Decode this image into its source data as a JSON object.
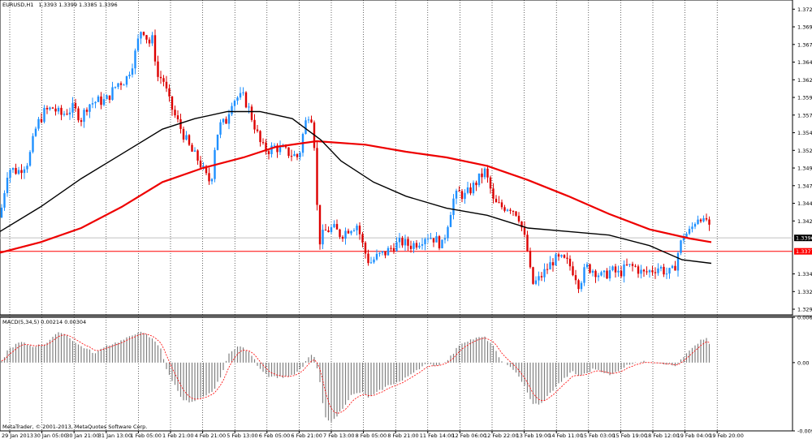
{
  "header": {
    "symbol": "EURUSD,H1",
    "ohlc": "1.3393 1.3399 1.3385 1.3396"
  },
  "footer": {
    "copyright": "MetaTrader, © 2001-2013, MetaQuotes Software Corp."
  },
  "colors": {
    "background": "#ffffff",
    "bull": "#1e90ff",
    "bear": "#dd0000",
    "ma_red": "#ee0000",
    "ma_black": "#000000",
    "grid": "#000000",
    "level_line": "#ff0000",
    "bid_line": "#c0c0c0",
    "macd_hist": "#808080",
    "macd_signal": "#ff0000"
  },
  "chart_data": [
    {
      "type": "candlestick",
      "title": "EURUSD,H1",
      "ylim": [
        1.3287,
        1.3733
      ],
      "y_ticks": [
        "1.3720",
        "1.3695",
        "1.3670",
        "1.3645",
        "1.3620",
        "1.3595",
        "1.3570",
        "1.3545",
        "1.3520",
        "1.3495",
        "1.3470",
        "1.3445",
        "1.3420",
        "1.3396",
        "1.3377",
        "1.3345",
        "1.3320",
        "1.3295"
      ],
      "x_labels": [
        "29 Jan 2013",
        "30 Jan 05:00",
        "30 Jan 21:00",
        "31 Jan 13:00",
        "1 Feb 05:00",
        "1 Feb 21:00",
        "4 Feb 21:00",
        "5 Feb 13:00",
        "6 Feb 05:00",
        "6 Feb 21:00",
        "7 Feb 13:00",
        "8 Feb 05:00",
        "8 Feb 21:00",
        "11 Feb 14:00",
        "12 Feb 06:00",
        "12 Feb 22:00",
        "13 Feb 19:00",
        "14 Feb 11:00",
        "15 Feb 03:00",
        "15 Feb 19:00",
        "18 Feb 12:00",
        "19 Feb 04:00",
        "19 Feb 20:00"
      ],
      "current_price": "1.3396",
      "level_line": "1.3377",
      "grid": true,
      "price_path": [
        [
          0,
          1.3425
        ],
        [
          10,
          1.3495
        ],
        [
          22,
          1.349
        ],
        [
          35,
          1.3505
        ],
        [
          45,
          1.3555
        ],
        [
          55,
          1.3575
        ],
        [
          65,
          1.358
        ],
        [
          75,
          1.357
        ],
        [
          90,
          1.358
        ],
        [
          100,
          1.3565
        ],
        [
          108,
          1.3585
        ],
        [
          120,
          1.359
        ],
        [
          130,
          1.359
        ],
        [
          145,
          1.3615
        ],
        [
          155,
          1.362
        ],
        [
          165,
          1.365
        ],
        [
          173,
          1.369
        ],
        [
          178,
          1.369
        ],
        [
          183,
          1.367
        ],
        [
          187,
          1.368
        ],
        [
          190,
          1.366
        ],
        [
          195,
          1.362
        ],
        [
          200,
          1.3625
        ],
        [
          208,
          1.359
        ],
        [
          215,
          1.357
        ],
        [
          225,
          1.3545
        ],
        [
          235,
          1.352
        ],
        [
          245,
          1.3505
        ],
        [
          255,
          1.348
        ],
        [
          260,
          1.3475
        ],
        [
          265,
          1.353
        ],
        [
          270,
          1.3555
        ],
        [
          278,
          1.356
        ],
        [
          285,
          1.359
        ],
        [
          292,
          1.3595
        ],
        [
          300,
          1.3595
        ],
        [
          306,
          1.358
        ],
        [
          315,
          1.355
        ],
        [
          322,
          1.3525
        ],
        [
          330,
          1.352
        ],
        [
          338,
          1.3525
        ],
        [
          348,
          1.352
        ],
        [
          358,
          1.3515
        ],
        [
          368,
          1.351
        ],
        [
          375,
          1.3555
        ],
        [
          381,
          1.3575
        ],
        [
          386,
          1.356
        ],
        [
          389,
          1.347
        ],
        [
          393,
          1.339
        ],
        [
          400,
          1.3405
        ],
        [
          410,
          1.341
        ],
        [
          420,
          1.34
        ],
        [
          430,
          1.341
        ],
        [
          440,
          1.3415
        ],
        [
          448,
          1.338
        ],
        [
          455,
          1.336
        ],
        [
          465,
          1.337
        ],
        [
          475,
          1.3375
        ],
        [
          485,
          1.3385
        ],
        [
          495,
          1.339
        ],
        [
          505,
          1.3385
        ],
        [
          515,
          1.339
        ],
        [
          525,
          1.34
        ],
        [
          535,
          1.3395
        ],
        [
          545,
          1.3385
        ],
        [
          552,
          1.342
        ],
        [
          558,
          1.345
        ],
        [
          565,
          1.346
        ],
        [
          572,
          1.3455
        ],
        [
          580,
          1.3465
        ],
        [
          590,
          1.348
        ],
        [
          597,
          1.349
        ],
        [
          603,
          1.347
        ],
        [
          608,
          1.3445
        ],
        [
          618,
          1.344
        ],
        [
          628,
          1.344
        ],
        [
          638,
          1.343
        ],
        [
          645,
          1.34
        ],
        [
          650,
          1.3375
        ],
        [
          655,
          1.333
        ],
        [
          662,
          1.3335
        ],
        [
          672,
          1.335
        ],
        [
          682,
          1.3365
        ],
        [
          692,
          1.3365
        ],
        [
          700,
          1.336
        ],
        [
          708,
          1.3345
        ],
        [
          713,
          1.333
        ],
        [
          722,
          1.3355
        ],
        [
          732,
          1.335
        ],
        [
          742,
          1.334
        ],
        [
          752,
          1.335
        ],
        [
          762,
          1.3345
        ],
        [
          772,
          1.3355
        ],
        [
          782,
          1.3355
        ],
        [
          792,
          1.3345
        ],
        [
          802,
          1.335
        ],
        [
          812,
          1.3355
        ],
        [
          822,
          1.3345
        ],
        [
          830,
          1.335
        ],
        [
          836,
          1.338
        ],
        [
          842,
          1.34
        ],
        [
          850,
          1.3405
        ],
        [
          856,
          1.342
        ],
        [
          862,
          1.343
        ],
        [
          867,
          1.3415
        ],
        [
          871,
          1.3425
        ],
        [
          875,
          1.3396
        ]
      ],
      "series": [
        {
          "name": "",
          "color": "#ee0000",
          "points": [
            [
              0,
              1.3375
            ],
            [
              50,
              1.339
            ],
            [
              100,
              1.341
            ],
            [
              150,
              1.344
            ],
            [
              200,
              1.3475
            ],
            [
              250,
              1.3495
            ],
            [
              300,
              1.351
            ],
            [
              340,
              1.3525
            ],
            [
              390,
              1.3533
            ],
            [
              450,
              1.3528
            ],
            [
              500,
              1.3518
            ],
            [
              550,
              1.351
            ],
            [
              600,
              1.3498
            ],
            [
              650,
              1.3478
            ],
            [
              700,
              1.3455
            ],
            [
              750,
              1.343
            ],
            [
              800,
              1.3408
            ],
            [
              850,
              1.3395
            ],
            [
              876,
              1.339
            ]
          ]
        },
        {
          "name": "",
          "color": "#000000",
          "points": [
            [
              0,
              1.3405
            ],
            [
              50,
              1.344
            ],
            [
              100,
              1.348
            ],
            [
              150,
              1.3515
            ],
            [
              200,
              1.355
            ],
            [
              240,
              1.3565
            ],
            [
              280,
              1.3575
            ],
            [
              320,
              1.3575
            ],
            [
              360,
              1.3565
            ],
            [
              395,
              1.3535
            ],
            [
              420,
              1.3505
            ],
            [
              460,
              1.3475
            ],
            [
              500,
              1.3455
            ],
            [
              550,
              1.3438
            ],
            [
              600,
              1.3428
            ],
            [
              650,
              1.341
            ],
            [
              700,
              1.3405
            ],
            [
              750,
              1.34
            ],
            [
              800,
              1.3385
            ],
            [
              840,
              1.3365
            ],
            [
              876,
              1.336
            ]
          ]
        }
      ]
    },
    {
      "type": "bar",
      "title": "MACD(5,34,5) 0.00214 0.00304",
      "ylim": [
        -0.00928,
        0.00616
      ],
      "y_ticks": [
        "0.00616",
        "0.00",
        "-0.00928"
      ],
      "macd_path": [
        [
          0,
          -0.0003
        ],
        [
          10,
          0.0018
        ],
        [
          25,
          0.0028
        ],
        [
          40,
          0.0022
        ],
        [
          55,
          0.0025
        ],
        [
          65,
          0.0035
        ],
        [
          75,
          0.0042
        ],
        [
          85,
          0.0035
        ],
        [
          95,
          0.0025
        ],
        [
          108,
          0.0018
        ],
        [
          118,
          0.0012
        ],
        [
          128,
          0.0022
        ],
        [
          140,
          0.0026
        ],
        [
          150,
          0.003
        ],
        [
          160,
          0.0035
        ],
        [
          170,
          0.0042
        ],
        [
          180,
          0.0038
        ],
        [
          190,
          0.003
        ],
        [
          198,
          0.002
        ],
        [
          205,
          -0.001
        ],
        [
          215,
          -0.003
        ],
        [
          225,
          -0.005
        ],
        [
          235,
          -0.0055
        ],
        [
          245,
          -0.005
        ],
        [
          255,
          -0.0045
        ],
        [
          265,
          -0.0035
        ],
        [
          275,
          -0.001
        ],
        [
          283,
          0.0015
        ],
        [
          293,
          0.0022
        ],
        [
          300,
          0.002
        ],
        [
          310,
          0.001
        ],
        [
          318,
          -0.0005
        ],
        [
          330,
          -0.0018
        ],
        [
          345,
          -0.002
        ],
        [
          360,
          -0.0018
        ],
        [
          372,
          -0.0008
        ],
        [
          382,
          0.0012
        ],
        [
          388,
          0.0005
        ],
        [
          393,
          -0.002
        ],
        [
          400,
          -0.0075
        ],
        [
          410,
          -0.008
        ],
        [
          420,
          -0.0065
        ],
        [
          432,
          -0.0045
        ],
        [
          445,
          -0.004
        ],
        [
          455,
          -0.0048
        ],
        [
          468,
          -0.0038
        ],
        [
          480,
          -0.003
        ],
        [
          495,
          -0.0025
        ],
        [
          510,
          -0.0012
        ],
        [
          525,
          -0.0002
        ],
        [
          538,
          -0.0004
        ],
        [
          550,
          0.0003
        ],
        [
          558,
          0.0012
        ],
        [
          566,
          0.0025
        ],
        [
          576,
          0.003
        ],
        [
          586,
          0.0033
        ],
        [
          596,
          0.0035
        ],
        [
          606,
          0.0025
        ],
        [
          614,
          0.0008
        ],
        [
          624,
          -0.0004
        ],
        [
          634,
          -0.001
        ],
        [
          645,
          -0.003
        ],
        [
          655,
          -0.0055
        ],
        [
          665,
          -0.0058
        ],
        [
          675,
          -0.0045
        ],
        [
          685,
          -0.0032
        ],
        [
          695,
          -0.0022
        ],
        [
          705,
          -0.0012
        ],
        [
          712,
          -0.0018
        ],
        [
          722,
          -0.0015
        ],
        [
          732,
          -0.0008
        ],
        [
          742,
          -0.0012
        ],
        [
          752,
          -0.0018
        ],
        [
          762,
          -0.001
        ],
        [
          772,
          -0.0004
        ],
        [
          782,
          0.0001
        ],
        [
          792,
          0.0001
        ],
        [
          802,
          0.0001
        ],
        [
          812,
          0.0
        ],
        [
          822,
          -0.0002
        ],
        [
          832,
          -0.0005
        ],
        [
          840,
          0.0005
        ],
        [
          848,
          0.0015
        ],
        [
          856,
          0.0022
        ],
        [
          864,
          0.0032
        ],
        [
          870,
          0.0032
        ],
        [
          876,
          0.0021
        ]
      ]
    }
  ]
}
